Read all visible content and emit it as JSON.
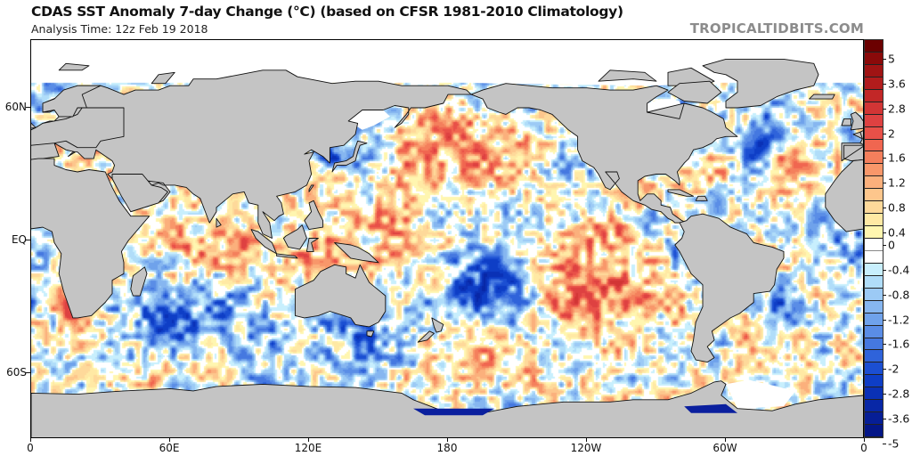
{
  "header": {
    "title": "CDAS SST Anomaly 7-day Change (°C) (based on CFSR 1981-2010 Climatology)",
    "analysis_time": "Analysis Time: 12z Feb 19 2018",
    "brand": "TROPICALTIDBITS.COM"
  },
  "map": {
    "variable": "SST anomaly 7-day change",
    "units": "°C",
    "projection": "cylindrical equidistant, 0–360 longitude",
    "land_color": "#c4c4c4",
    "sea_ice_color": "#ffffff",
    "x_axis_labels": [
      "0",
      "60E",
      "120E",
      "180",
      "120W",
      "60W",
      "0"
    ],
    "y_axis_labels": [
      "60N",
      "EQ",
      "60S"
    ]
  },
  "colorbar": {
    "labels": [
      "5",
      "3.6",
      "2.8",
      "2",
      "1.6",
      "1.2",
      "0.8",
      "0.4",
      "0",
      "-0.4",
      "-0.8",
      "-1.2",
      "-1.6",
      "-2",
      "-2.8",
      "-3.6",
      "-5"
    ],
    "colors": [
      "#6b0000",
      "#8a0a0a",
      "#a01414",
      "#b21c1c",
      "#c22727",
      "#d23535",
      "#de4141",
      "#e85048",
      "#f06650",
      "#f47f5c",
      "#f8976a",
      "#fbb07c",
      "#fdc68c",
      "#fed99a",
      "#ffe9a4",
      "#fff6b0",
      "#ffffff",
      "#ffffff",
      "#c8effd",
      "#b0ddf9",
      "#9ccaf5",
      "#86b6f0",
      "#6fa2eb",
      "#5a8de6",
      "#4578e0",
      "#2f63da",
      "#1b4fd2",
      "#0e3ec6",
      "#0a31b6",
      "#0827a6",
      "#061e96",
      "#041687"
    ]
  }
}
